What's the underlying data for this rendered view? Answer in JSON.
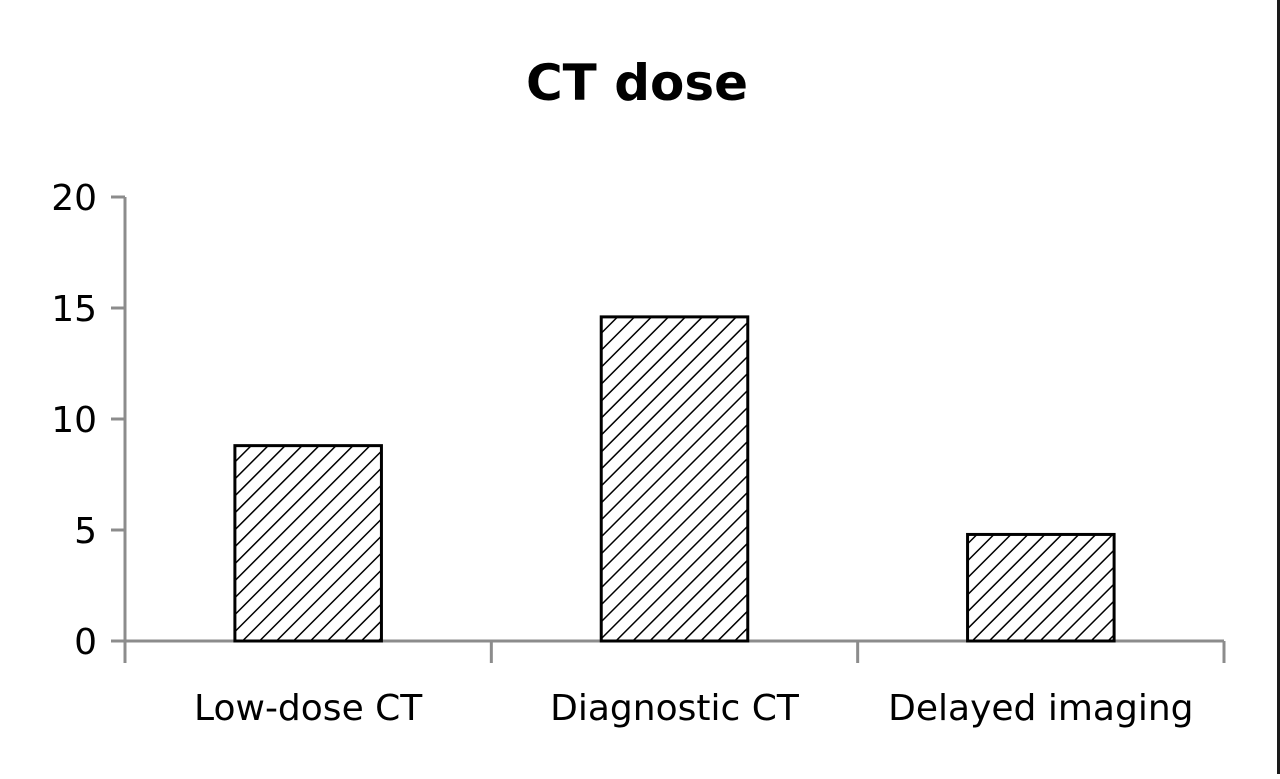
{
  "chart_data": {
    "type": "bar",
    "title": "CT dose",
    "xlabel": "",
    "ylabel": "",
    "categories": [
      "Low-dose CT",
      "Diagnostic CT",
      "Delayed imaging"
    ],
    "values": [
      8.8,
      14.6,
      4.8
    ],
    "ylim": [
      0,
      20
    ],
    "yticks": [
      "0",
      "5",
      "10",
      "15",
      "20"
    ],
    "grid": false,
    "legend": "none",
    "bar_fill": "hatched",
    "colors": {
      "bar_stroke": "#000000",
      "hatch": "#000000",
      "axis": "#8c8c8c",
      "text": "#000000"
    }
  }
}
